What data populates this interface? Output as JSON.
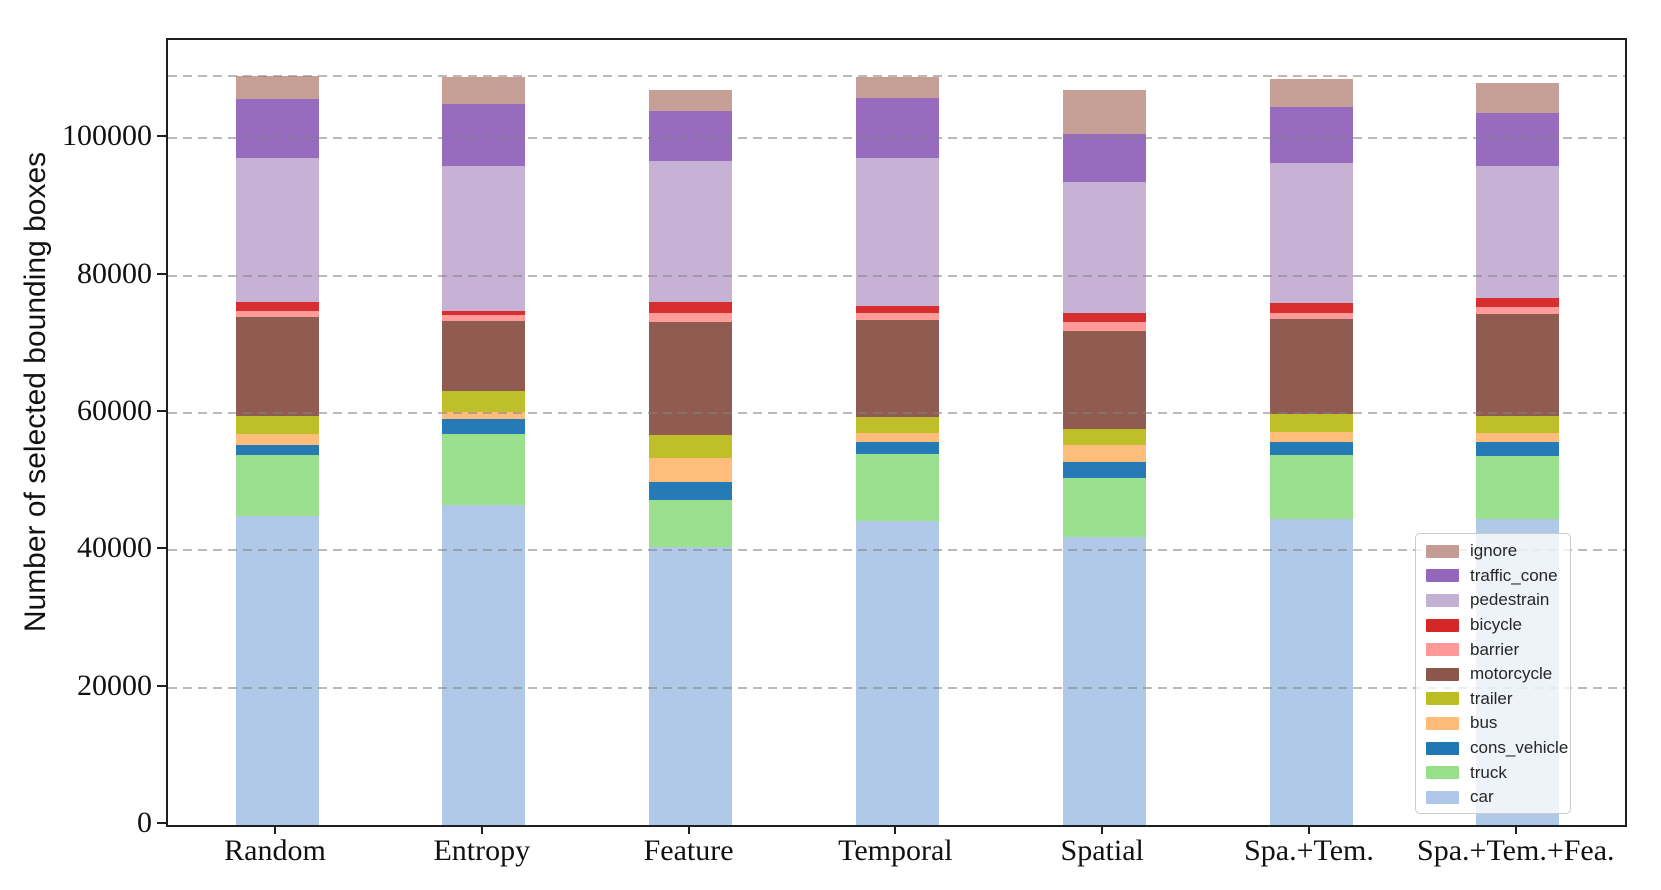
{
  "chart_data": {
    "type": "bar",
    "stacked": true,
    "title": "",
    "xlabel": "",
    "ylabel": "Number of selected bounding boxes",
    "categories": [
      "Random",
      "Entropy",
      "Feature",
      "Temporal",
      "Spatial",
      "Spa.+Tem.",
      "Spa.+Tem.+Fea."
    ],
    "series": [
      {
        "name": "car",
        "color": "#aec7e8",
        "values": [
          45000,
          46550,
          40500,
          44200,
          42000,
          44500,
          44600
        ]
      },
      {
        "name": "truck",
        "color": "#98df8a",
        "values": [
          8900,
          10400,
          6800,
          9800,
          8500,
          9350,
          9150
        ]
      },
      {
        "name": "cons_vehicle",
        "color": "#1f77b4",
        "values": [
          1500,
          2100,
          2700,
          1800,
          2400,
          1950,
          1950
        ]
      },
      {
        "name": "bus",
        "color": "#ffbb78",
        "values": [
          1600,
          1150,
          3400,
          1300,
          2500,
          1400,
          1400
        ]
      },
      {
        "name": "trailer",
        "color": "#bcbd22",
        "values": [
          2600,
          3050,
          3400,
          2300,
          2200,
          2600,
          2500
        ]
      },
      {
        "name": "motorcycle",
        "color": "#8c564b",
        "values": [
          14300,
          10200,
          16400,
          14200,
          14400,
          13900,
          14800
        ]
      },
      {
        "name": "barrier",
        "color": "#ff9896",
        "values": [
          1000,
          750,
          1400,
          900,
          1200,
          900,
          1000
        ]
      },
      {
        "name": "bicycle",
        "color": "#d62728",
        "values": [
          1200,
          700,
          1500,
          1000,
          1400,
          1400,
          1400
        ]
      },
      {
        "name": "pedestrain",
        "color": "#c5b0d5",
        "values": [
          21000,
          21100,
          20600,
          21600,
          19000,
          20400,
          19200
        ]
      },
      {
        "name": "traffic_cone",
        "color": "#9467bd",
        "values": [
          8600,
          8950,
          7200,
          8800,
          7000,
          8100,
          7700
        ]
      },
      {
        "name": "ignore",
        "color": "#c49c94",
        "values": [
          3300,
          3950,
          3100,
          3000,
          6400,
          4100,
          4300
        ]
      }
    ],
    "totals": [
      109000,
      108900,
      107000,
      108900,
      107000,
      108600,
      108000
    ],
    "ylim": [
      0,
      114300
    ],
    "y_ticks": [
      0,
      20000,
      40000,
      60000,
      80000,
      100000
    ],
    "y_tick_labels": [
      "0",
      "20000",
      "40000",
      "60000",
      "80000",
      "100000"
    ],
    "reference_line": {
      "value": 109000,
      "style": "dashed",
      "color": "#8a8a8a"
    },
    "grid": {
      "axis": "y",
      "style": "dashed",
      "color": "#b0b0b0"
    },
    "legend": {
      "position": "lower right",
      "order_top_to_bottom": [
        "ignore",
        "traffic_cone",
        "pedestrain",
        "bicycle",
        "barrier",
        "motorcycle",
        "trailer",
        "bus",
        "cons_vehicle",
        "truck",
        "car"
      ]
    }
  },
  "colors": {
    "axis": "#1f1f1f",
    "tick_text": "#111111",
    "background": "#ffffff"
  }
}
